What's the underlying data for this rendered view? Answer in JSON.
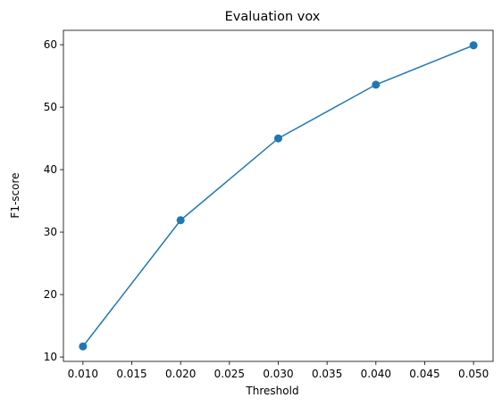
{
  "chart_data": {
    "type": "line",
    "title": "Evaluation vox",
    "xlabel": "Threshold",
    "ylabel": "F1-score",
    "x": [
      0.01,
      0.02,
      0.03,
      0.04,
      0.05
    ],
    "series": [
      {
        "values": [
          11.7,
          31.9,
          45.0,
          53.6,
          59.9
        ],
        "color": "#1f77b4",
        "marker": "circle"
      }
    ],
    "xlim": [
      0.008,
      0.052
    ],
    "ylim": [
      9.3,
      62.3
    ],
    "xticks": [
      0.01,
      0.015,
      0.02,
      0.025,
      0.03,
      0.035,
      0.04,
      0.045,
      0.05
    ],
    "xtick_labels": [
      "0.010",
      "0.015",
      "0.020",
      "0.025",
      "0.030",
      "0.035",
      "0.040",
      "0.045",
      "0.050"
    ],
    "yticks": [
      10,
      20,
      30,
      40,
      50,
      60
    ],
    "ytick_labels": [
      "10",
      "20",
      "30",
      "40",
      "50",
      "60"
    ],
    "grid": false,
    "legend": "none"
  }
}
